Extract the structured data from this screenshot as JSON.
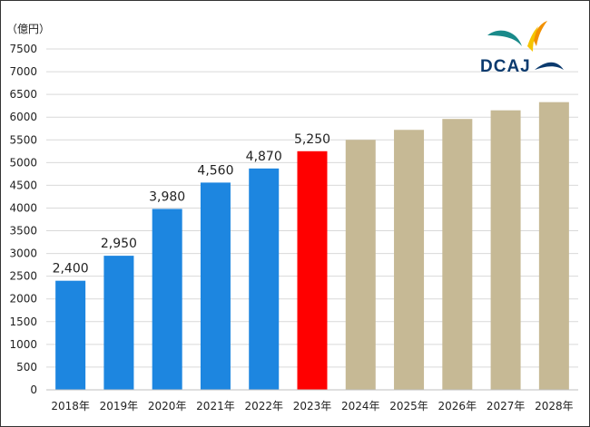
{
  "chart_data": {
    "type": "bar",
    "unit_label": "（億円）",
    "categories": [
      "2018年",
      "2019年",
      "2020年",
      "2021年",
      "2022年",
      "2023年",
      "2024年",
      "2025年",
      "2026年",
      "2027年",
      "2028年"
    ],
    "values": [
      2400,
      2950,
      3980,
      4560,
      4870,
      5250,
      5500,
      5720,
      5960,
      6150,
      6330
    ],
    "data_labels": [
      "2,400",
      "2,950",
      "3,980",
      "4,560",
      "4,870",
      "5,250",
      "",
      "",
      "",
      "",
      ""
    ],
    "bar_colors": [
      "#1d86e0",
      "#1d86e0",
      "#1d86e0",
      "#1d86e0",
      "#1d86e0",
      "#ff0000",
      "#c6b995",
      "#c6b995",
      "#c6b995",
      "#c6b995",
      "#c6b995"
    ],
    "ylim": [
      0,
      7500
    ],
    "yticks": [
      0,
      500,
      1000,
      1500,
      2000,
      2500,
      3000,
      3500,
      4000,
      4500,
      5000,
      5500,
      6000,
      6500,
      7000,
      7500
    ],
    "grid": true,
    "title": "",
    "xlabel": "",
    "ylabel": ""
  },
  "logo": {
    "text": "DCAJ",
    "colors": {
      "navy": "#0b3a6e",
      "teal": "#1a8a8a",
      "orange": "#f29100",
      "yellow": "#f5c400"
    }
  }
}
